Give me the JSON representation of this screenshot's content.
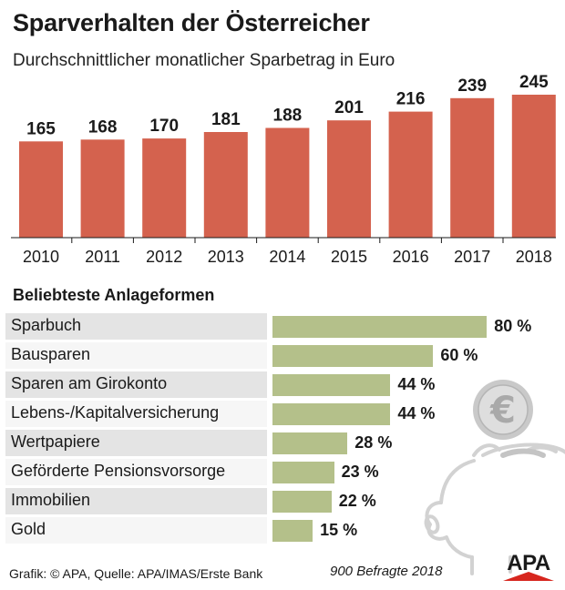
{
  "header": {
    "title": "Sparverhalten der Österreicher",
    "subtitle": "Durchschnittlicher monatlicher Sparbetrag in Euro"
  },
  "section": {
    "title": "Beliebteste Anlageformen"
  },
  "footer": {
    "source": "Grafik: © APA, Quelle: APA/IMAS/Erste Bank",
    "note": "900 Befragte 2018",
    "logo": "APA"
  },
  "colors": {
    "bar_top": "#d4624e",
    "bar_bottom": "#b4c08a",
    "stripe_dark": "#e4e4e4",
    "stripe_light": "#f6f6f6",
    "logo_red": "#d7261e"
  },
  "icons": [
    "euro-coin-icon",
    "piggy-bank-icon"
  ],
  "chart_data": [
    {
      "type": "bar",
      "title": "Durchschnittlicher monatlicher Sparbetrag in Euro",
      "categories": [
        "2010",
        "2011",
        "2012",
        "2013",
        "2014",
        "2015",
        "2016",
        "2017",
        "2018"
      ],
      "values": [
        165,
        168,
        170,
        181,
        188,
        201,
        216,
        239,
        245
      ],
      "ylim": [
        0,
        245
      ],
      "xlabel": "",
      "ylabel": ""
    },
    {
      "type": "bar",
      "orientation": "horizontal",
      "title": "Beliebteste Anlageformen",
      "unit": "%",
      "categories": [
        "Sparbuch",
        "Bausparen",
        "Sparen am Girokonto",
        "Lebens-/Kapitalversicherung",
        "Wertpapiere",
        "Geförderte Pensionsvorsorge",
        "Immobilien",
        "Gold"
      ],
      "values": [
        80,
        60,
        44,
        44,
        28,
        23,
        22,
        15
      ],
      "labels": [
        "80 %",
        "60 %",
        "44 %",
        "44 %",
        "28 %",
        "23 %",
        "22 %",
        "15 %"
      ],
      "xlim": [
        0,
        100
      ]
    }
  ]
}
